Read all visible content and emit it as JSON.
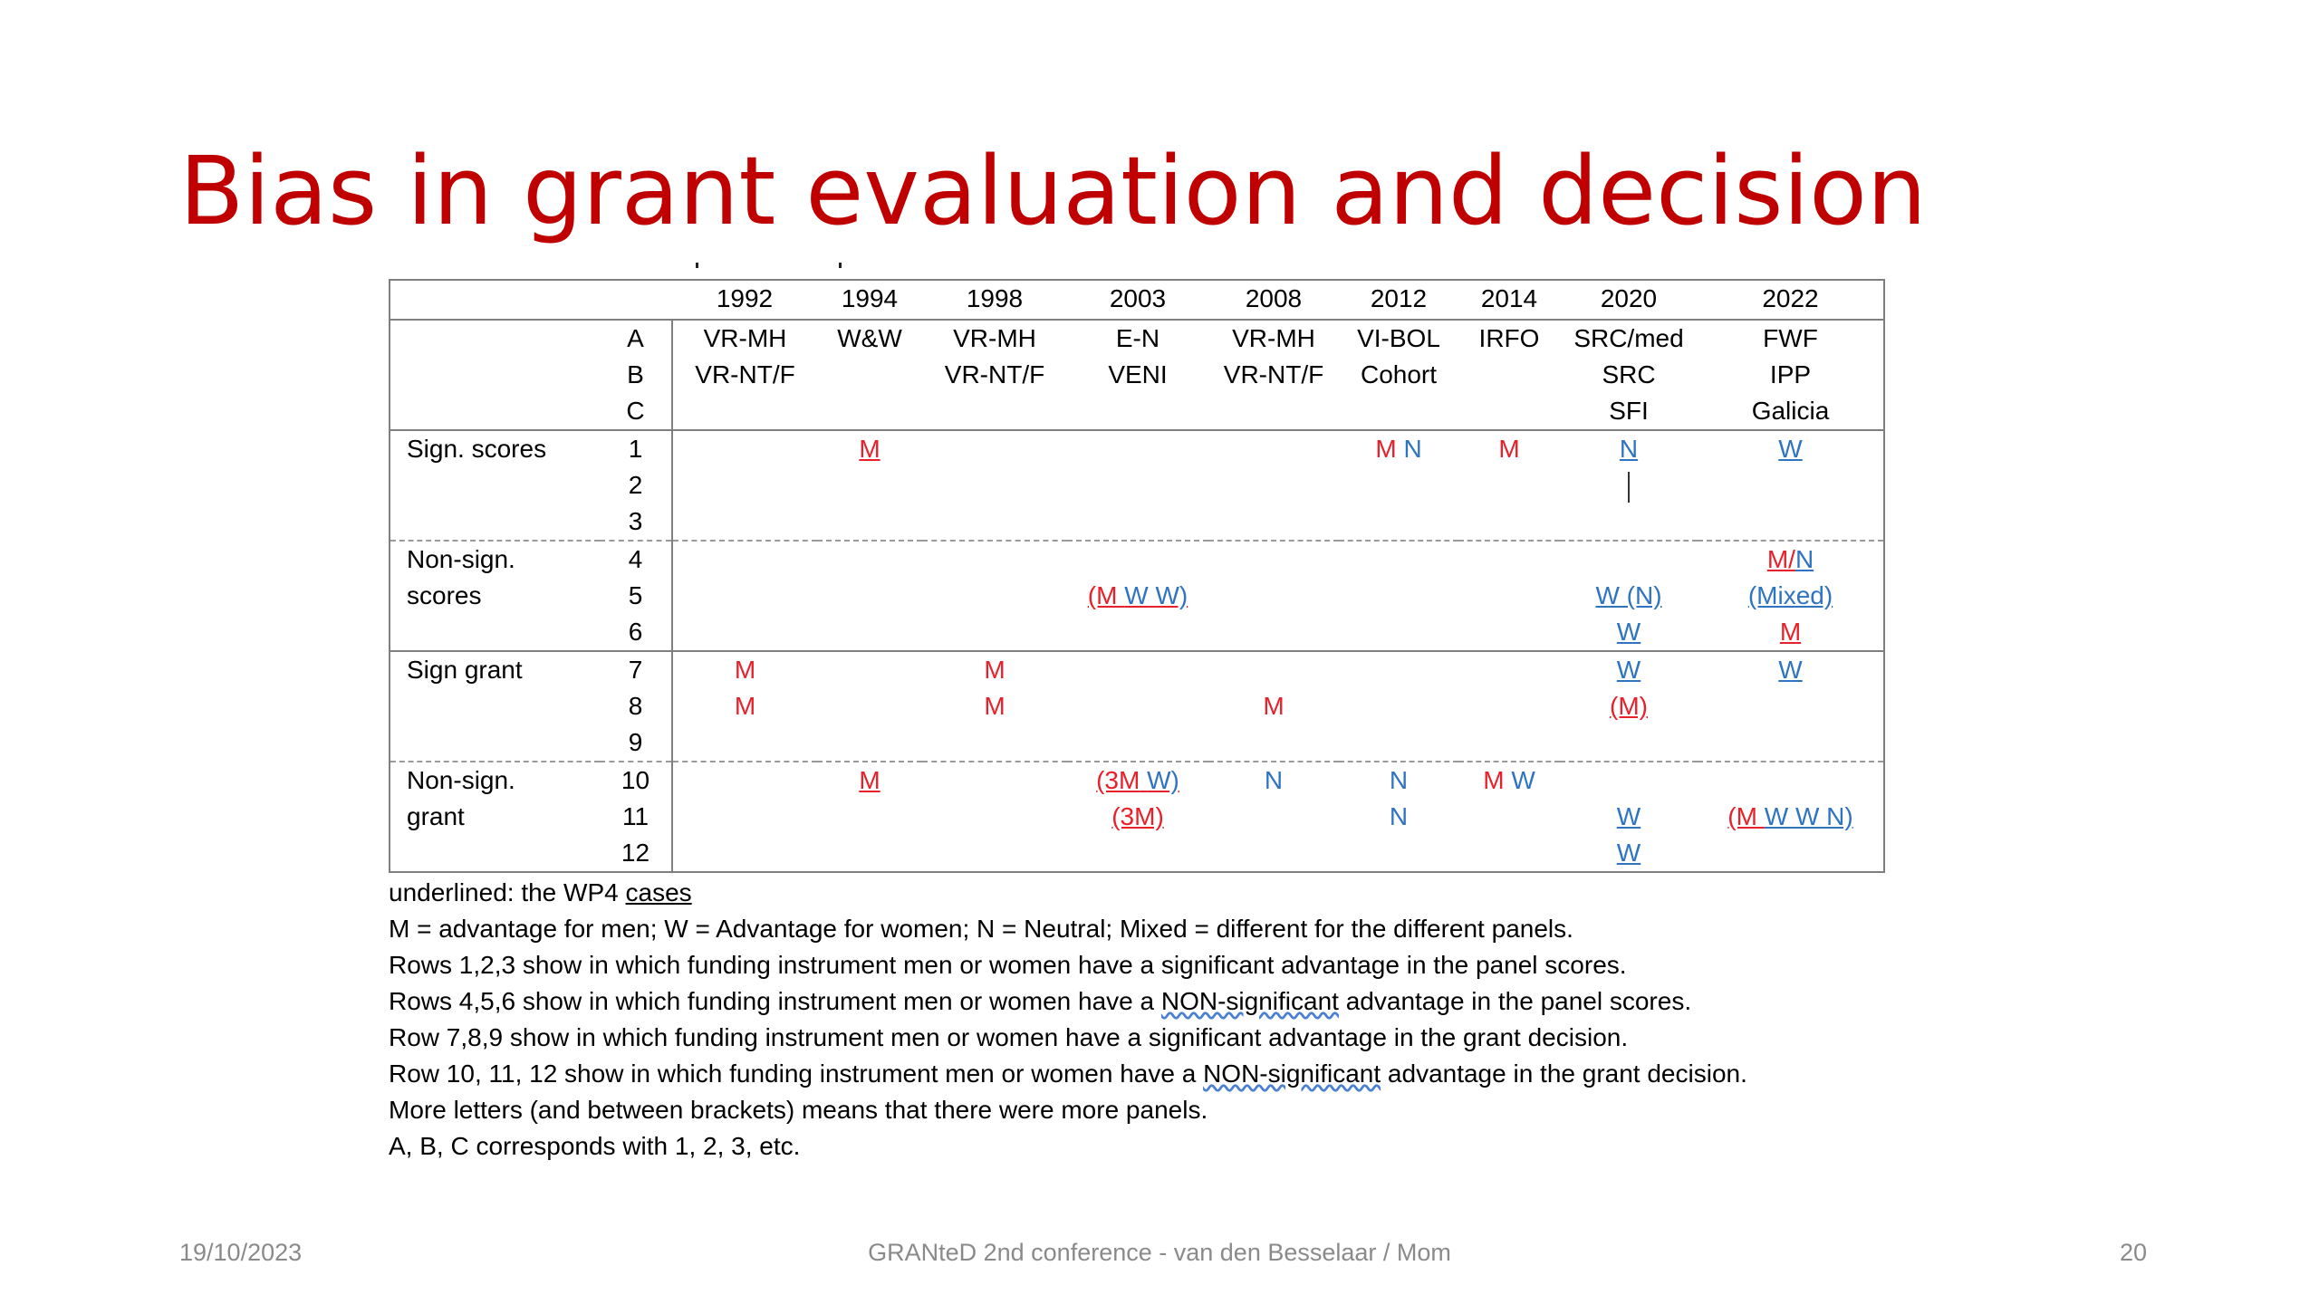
{
  "title": "Bias in grant evaluation and decision",
  "table": {
    "years": [
      "1992",
      "1994",
      "1998",
      "2003",
      "2008",
      "2012",
      "2014",
      "2020",
      "2022"
    ],
    "abc_letters": [
      "A",
      "B",
      "C"
    ],
    "instruments": {
      "c1992": [
        "VR-MH",
        "VR-NT/F",
        ""
      ],
      "c1994": [
        "W&W",
        "",
        ""
      ],
      "c1998": [
        "VR-MH",
        "VR-NT/F",
        ""
      ],
      "c2003": [
        "E-N",
        "VENI",
        ""
      ],
      "c2008": [
        "VR-MH",
        "VR-NT/F",
        ""
      ],
      "c2012": [
        "VI-BOL",
        "Cohort",
        ""
      ],
      "c2014": [
        "IRFO",
        "",
        ""
      ],
      "c2020": [
        "SRC/med",
        "SRC",
        "SFI"
      ],
      "c2022": [
        "FWF",
        "IPP",
        "Galicia"
      ]
    },
    "groups": {
      "sign_scores": {
        "label": "Sign. scores",
        "rows": [
          "1",
          "2",
          "3"
        ]
      },
      "nonsign_scores": {
        "label1": "Non-sign.",
        "label2": "scores",
        "rows": [
          "4",
          "5",
          "6"
        ]
      },
      "sign_grant": {
        "label": "Sign grant",
        "rows": [
          "7",
          "8",
          "9"
        ]
      },
      "nonsign_grant": {
        "label1": "Non-sign.",
        "label2": "grant",
        "rows": [
          "10",
          "11",
          "12"
        ]
      }
    },
    "marks": {
      "r1_1994": "M",
      "r1_2012_m": "M",
      "r1_2012_n": "N",
      "r1_2014": "M",
      "r1_2020": "N",
      "r1_2022": "W",
      "r4_2022_m": "M/",
      "r4_2022_n": "N",
      "r5_2003_open": "(M",
      "r5_2003_w1": "W",
      "r5_2003_w2": "W)",
      "r5_2020": "W (N)",
      "r5_2022": "(Mixed)",
      "r6_2020": "W",
      "r6_2022": "M",
      "r7_1992": "M",
      "r7_1998": "M",
      "r7_2020": "W",
      "r7_2022": "W",
      "r8_1992": "M",
      "r8_1998": "M",
      "r8_2008": "M",
      "r8_2020": "(M)",
      "r10_1994": "M",
      "r10_2003_m": "(3M",
      "r10_2003_w": "W)",
      "r10_2008": "N",
      "r10_2012": "N",
      "r10_2014_m": "M",
      "r10_2014_w": "W",
      "r11_2003": "(3M)",
      "r11_2012": "N",
      "r11_2020": "W",
      "r11_2022_m": "(M",
      "r11_2022_w": "W W N)",
      "r12_2020": "W"
    }
  },
  "notes": {
    "line1_a": "underlined: the WP4 ",
    "line1_b": "cases",
    "line2": "M = advantage for men; W = Advantage for women; N = Neutral; Mixed = different for the different panels.",
    "line3": "Rows 1,2,3 show in which funding instrument men or women have a significant advantage in the panel scores.",
    "line4_a": "Rows 4,5,6 show in which funding instrument men or women have a ",
    "line4_b": "NON-significant",
    "line4_c": " advantage in the panel scores.",
    "line5": "Row 7,8,9 show in which funding instrument men or women have a significant advantage in the grant decision.",
    "line6_a": "Row 10, 11, 12 show in which funding instrument men or women have a ",
    "line6_b": "NON-significant",
    "line6_c": " advantage in the grant decision.",
    "line7": "More letters (and between brackets) means that there were more panels.",
    "line8": "A, B, C corresponds with 1, 2, 3, etc."
  },
  "footer": {
    "date": "19/10/2023",
    "center": "GRANteD 2nd conference - van den Besselaar / Mom",
    "page": "20"
  },
  "colors": {
    "title": "#c00000",
    "men": "#e8202a",
    "women_neutral": "#2e74c0"
  }
}
